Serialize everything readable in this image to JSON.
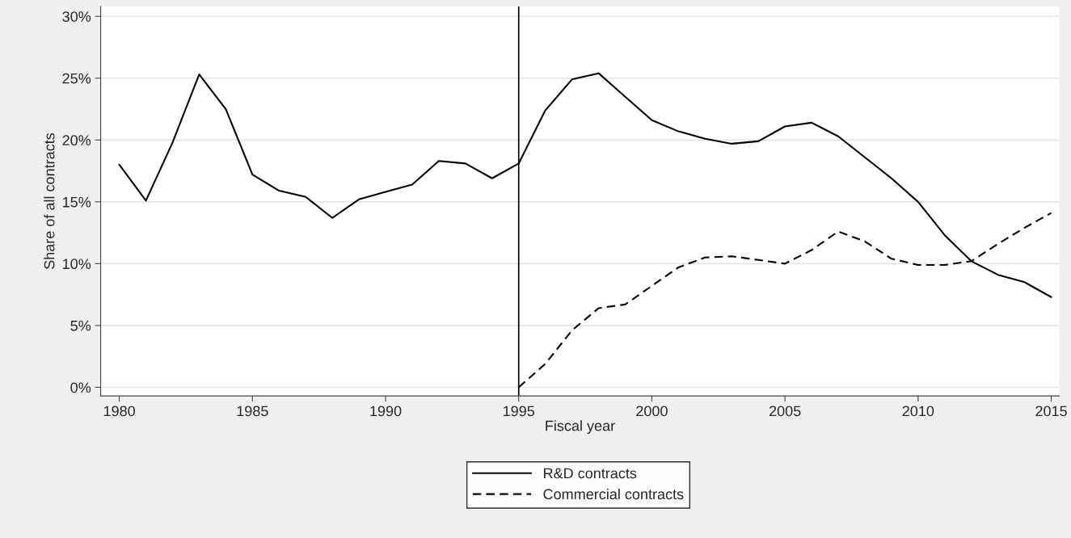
{
  "chart_data": {
    "type": "line",
    "xlabel": "Fiscal year",
    "ylabel": "Share of all contracts",
    "x": [
      1980,
      1981,
      1982,
      1983,
      1984,
      1985,
      1986,
      1987,
      1988,
      1989,
      1990,
      1991,
      1992,
      1993,
      1994,
      1995,
      1996,
      1997,
      1998,
      1999,
      2000,
      2001,
      2002,
      2003,
      2004,
      2005,
      2006,
      2007,
      2008,
      2009,
      2010,
      2011,
      2012,
      2013,
      2014,
      2015
    ],
    "series": [
      {
        "name": "R&D contracts",
        "color": "#000000",
        "line_style": "solid",
        "values": [
          18.0,
          15.1,
          19.8,
          25.3,
          22.5,
          17.2,
          15.9,
          15.4,
          13.7,
          15.2,
          15.8,
          16.4,
          18.3,
          18.1,
          16.9,
          18.1,
          22.4,
          24.9,
          25.4,
          23.5,
          21.6,
          20.7,
          20.1,
          19.7,
          19.9,
          21.1,
          21.4,
          20.3,
          18.6,
          16.9,
          15.0,
          12.3,
          10.2,
          9.1,
          8.5,
          7.3
        ]
      },
      {
        "name": "Commercial contracts",
        "color": "#000000",
        "line_style": "dashed",
        "x": [
          1995,
          1996,
          1997,
          1998,
          1999,
          2000,
          2001,
          2002,
          2003,
          2004,
          2005,
          2006,
          2007,
          2008,
          2009,
          2010,
          2011,
          2012,
          2013,
          2014,
          2015
        ],
        "values": [
          0.0,
          1.9,
          4.6,
          6.4,
          6.7,
          8.2,
          9.7,
          10.5,
          10.6,
          10.3,
          10.0,
          11.1,
          12.6,
          11.8,
          10.4,
          9.9,
          9.9,
          10.2,
          11.6,
          12.9,
          14.1
        ]
      }
    ],
    "xlim": [
      1979.3,
      2015.3
    ],
    "xticks": [
      1980,
      1985,
      1990,
      1995,
      2000,
      2005,
      2010,
      2015
    ],
    "ylim": [
      -0.7,
      30.8
    ],
    "yticks": [
      {
        "value": 0,
        "label": "0%"
      },
      {
        "value": 5,
        "label": "5%"
      },
      {
        "value": 10,
        "label": "10%"
      },
      {
        "value": 15,
        "label": "15%"
      },
      {
        "value": 20,
        "label": "20%"
      },
      {
        "value": 25,
        "label": "25%"
      },
      {
        "value": 30,
        "label": "30%"
      }
    ],
    "ref_lines": [
      {
        "axis": "x",
        "value": 1995,
        "color": "#000000"
      }
    ],
    "grid": "y",
    "legend": "bottom",
    "marker": "none"
  }
}
